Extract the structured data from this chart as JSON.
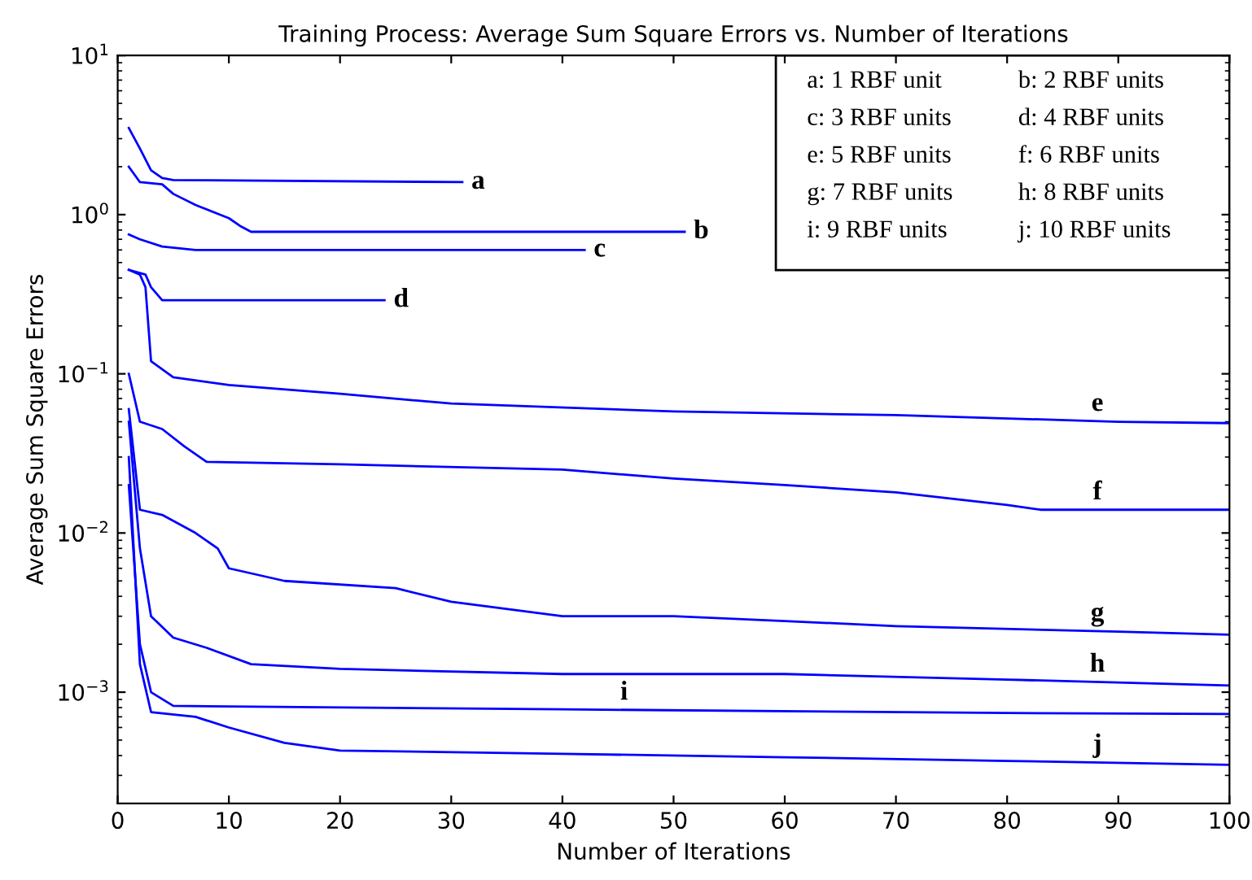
{
  "chart_data": {
    "type": "line",
    "title": "Training Process: Average Sum Square Errors vs. Number of Iterations",
    "xlabel": "Number of Iterations",
    "ylabel": "Average Sum Square Errors",
    "log": "y",
    "grid": false,
    "legend": false,
    "line_style": "solid",
    "marker": "none",
    "xlim": [
      0,
      100
    ],
    "xticks": [
      0,
      10,
      20,
      30,
      40,
      50,
      60,
      70,
      80,
      90,
      100
    ],
    "ylim": [
      0.0002,
      10
    ],
    "yticks": [
      {
        "value": 0.001,
        "label": "10$^{−3}$"
      },
      {
        "value": 0.01,
        "label": "10$^{−2}$"
      },
      {
        "value": 0.1,
        "label": "10$^{−1}$"
      },
      {
        "value": 1,
        "label": "10$^{0}$"
      },
      {
        "value": 10,
        "label": "10$^{1}$"
      }
    ],
    "series": [
      {
        "name": "a",
        "color": "#0000ff",
        "x": [
          1,
          2,
          3,
          4,
          5,
          31
        ],
        "values": [
          3.5,
          2.6,
          1.9,
          1.7,
          1.65,
          1.6
        ]
      },
      {
        "name": "b",
        "color": "#0000ff",
        "x": [
          1,
          2,
          4,
          5,
          7,
          10,
          11,
          12,
          51
        ],
        "values": [
          2.0,
          1.6,
          1.55,
          1.35,
          1.15,
          0.95,
          0.85,
          0.78,
          0.78
        ]
      },
      {
        "name": "c",
        "color": "#0000ff",
        "x": [
          1,
          2,
          4,
          7,
          42
        ],
        "values": [
          0.75,
          0.7,
          0.63,
          0.6,
          0.6
        ]
      },
      {
        "name": "d",
        "color": "#0000ff",
        "x": [
          1,
          2.5,
          3,
          4,
          24
        ],
        "values": [
          0.45,
          0.42,
          0.35,
          0.29,
          0.29
        ]
      },
      {
        "name": "e",
        "color": "#0000ff",
        "x": [
          1,
          2,
          2.5,
          3,
          5,
          10,
          20,
          30,
          50,
          70,
          90,
          100
        ],
        "values": [
          0.45,
          0.42,
          0.35,
          0.12,
          0.095,
          0.085,
          0.075,
          0.065,
          0.058,
          0.055,
          0.05,
          0.049
        ]
      },
      {
        "name": "f",
        "color": "#0000ff",
        "x": [
          1,
          2,
          4,
          6,
          8,
          20,
          40,
          50,
          60,
          70,
          80,
          83,
          100
        ],
        "values": [
          0.1,
          0.05,
          0.045,
          0.035,
          0.028,
          0.027,
          0.025,
          0.022,
          0.02,
          0.018,
          0.015,
          0.014,
          0.014
        ]
      },
      {
        "name": "g",
        "color": "#0000ff",
        "x": [
          1,
          2,
          4,
          7,
          9,
          10,
          15,
          25,
          30,
          40,
          50,
          60,
          70,
          90,
          100
        ],
        "values": [
          0.06,
          0.014,
          0.013,
          0.01,
          0.008,
          0.006,
          0.005,
          0.0045,
          0.0037,
          0.003,
          0.003,
          0.0028,
          0.0026,
          0.0024,
          0.0023
        ]
      },
      {
        "name": "h",
        "color": "#0000ff",
        "x": [
          1,
          2,
          3,
          5,
          8,
          12,
          20,
          40,
          60,
          80,
          100
        ],
        "values": [
          0.05,
          0.008,
          0.003,
          0.0022,
          0.0019,
          0.0015,
          0.0014,
          0.0013,
          0.0013,
          0.0012,
          0.0011
        ]
      },
      {
        "name": "i",
        "color": "#0000ff",
        "x": [
          1,
          2,
          3,
          5,
          40,
          80,
          100
        ],
        "values": [
          0.02,
          0.002,
          0.001,
          0.00082,
          0.00078,
          0.00074,
          0.00073
        ]
      },
      {
        "name": "j",
        "color": "#0000ff",
        "x": [
          1,
          2,
          3,
          7,
          10,
          15,
          20,
          40,
          60,
          80,
          100
        ],
        "values": [
          0.03,
          0.0015,
          0.00075,
          0.0007,
          0.0006,
          0.00048,
          0.00043,
          0.00041,
          0.00039,
          0.00037,
          0.00035
        ]
      }
    ],
    "annotations": [
      "a: 1 RBF unit",
      "b: 2 RBF units",
      "c: 3 RBF units",
      "d: 4 RBF units",
      "e: 5 RBF units",
      "f: 6 RBF units",
      "g: 7 RBF units",
      "h: 8 RBF units",
      "i: 9 RBF units",
      "j: 10 RBF units"
    ]
  }
}
